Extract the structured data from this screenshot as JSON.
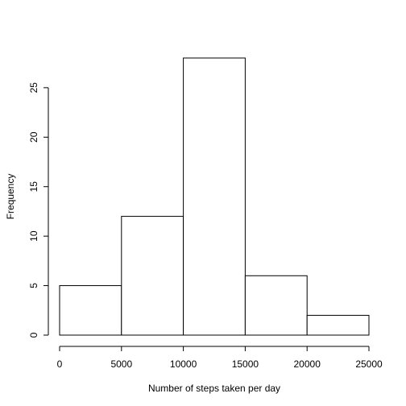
{
  "chart_data": {
    "type": "bar",
    "subtype": "histogram",
    "title": "",
    "xlabel": "Number of steps taken per day",
    "ylabel": "Frequency",
    "bins": [
      {
        "start": 0,
        "end": 5000,
        "value": 5
      },
      {
        "start": 5000,
        "end": 10000,
        "value": 12
      },
      {
        "start": 10000,
        "end": 15000,
        "value": 28
      },
      {
        "start": 15000,
        "end": 20000,
        "value": 6
      },
      {
        "start": 20000,
        "end": 25000,
        "value": 2
      }
    ],
    "xlim": [
      0,
      25000
    ],
    "ylim": [
      0,
      28
    ],
    "xticks": [
      0,
      5000,
      10000,
      15000,
      20000,
      25000
    ],
    "yticks": [
      0,
      5,
      10,
      15,
      20,
      25
    ],
    "grid": false,
    "legend": "none",
    "colors": {
      "bar_fill": "#ffffff",
      "bar_stroke": "#000000"
    }
  }
}
